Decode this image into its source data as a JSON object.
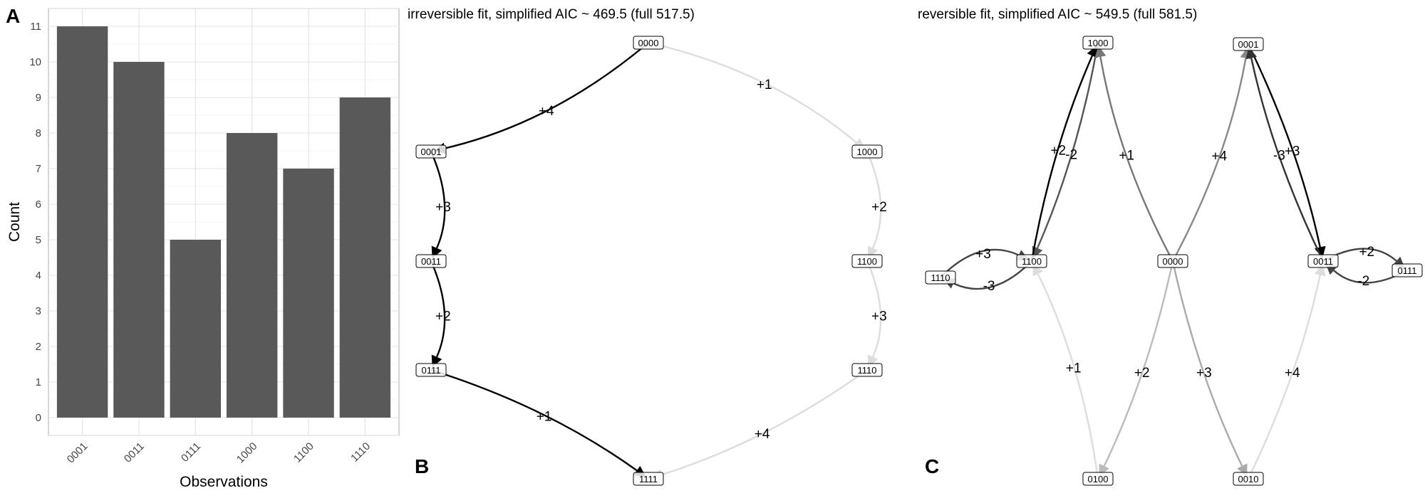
{
  "panels": {
    "a_letter": "A",
    "b_letter": "B",
    "c_letter": "C",
    "b_title": "irreversible fit, simplified AIC ~ 469.5 (full 517.5)",
    "c_title": "reversible fit, simplified AIC ~ 549.5 (full 581.5)"
  },
  "chart_data": [
    {
      "type": "bar",
      "categories": [
        "0001",
        "0011",
        "0111",
        "1000",
        "1100",
        "1110"
      ],
      "values": [
        11,
        10,
        5,
        8,
        7,
        9
      ],
      "xlabel": "Observations",
      "ylabel": "Count",
      "ylim": [
        -0.5,
        11.5
      ],
      "yticks": [
        0,
        1,
        2,
        3,
        4,
        5,
        6,
        7,
        8,
        9,
        10,
        11
      ],
      "grid": true,
      "bar_color": "#595959"
    },
    {
      "type": "diagram",
      "title": "irreversible fit, simplified AIC ~ 469.5 (full 517.5)",
      "nodes": [
        "0000",
        "0001",
        "0011",
        "0111",
        "1111",
        "1000",
        "1100",
        "1110"
      ],
      "edges": [
        {
          "from": "0000",
          "to": "0001",
          "label": "+4",
          "color": "#000000"
        },
        {
          "from": "0001",
          "to": "0011",
          "label": "+3",
          "color": "#000000"
        },
        {
          "from": "0011",
          "to": "0111",
          "label": "+2",
          "color": "#000000"
        },
        {
          "from": "0111",
          "to": "1111",
          "label": "+1",
          "color": "#000000"
        },
        {
          "from": "0000",
          "to": "1000",
          "label": "+1",
          "color": "#dddddd"
        },
        {
          "from": "1000",
          "to": "1100",
          "label": "+2",
          "color": "#dddddd"
        },
        {
          "from": "1100",
          "to": "1110",
          "label": "+3",
          "color": "#dddddd"
        },
        {
          "from": "1110",
          "to": "1111",
          "label": "+4",
          "color": "#dddddd"
        }
      ]
    },
    {
      "type": "diagram",
      "title": "reversible fit, simplified AIC ~ 549.5 (full 581.5)",
      "nodes": [
        "1000",
        "0001",
        "1110",
        "1100",
        "0000",
        "0011",
        "0111",
        "0100",
        "0010"
      ],
      "edges": [
        {
          "from": "1000",
          "to": "1100",
          "label": "-2",
          "color": "#555555"
        },
        {
          "from": "1100",
          "to": "1000",
          "label": "+2",
          "color": "#000000"
        },
        {
          "from": "0000",
          "to": "1000",
          "label": "+1",
          "color": "#777777"
        },
        {
          "from": "0000",
          "to": "0001",
          "label": "+4",
          "color": "#888888"
        },
        {
          "from": "0001",
          "to": "0011",
          "label": "+3",
          "color": "#000000"
        },
        {
          "from": "0011",
          "to": "0001",
          "label": "-3",
          "color": "#333333"
        },
        {
          "from": "1100",
          "to": "1110",
          "label": "-3",
          "color": "#444444"
        },
        {
          "from": "1110",
          "to": "1100",
          "label": "+3",
          "color": "#444444"
        },
        {
          "from": "0011",
          "to": "0111",
          "label": "+2",
          "color": "#444444"
        },
        {
          "from": "0111",
          "to": "0011",
          "label": "-2",
          "color": "#444444"
        },
        {
          "from": "0100",
          "to": "1100",
          "label": "+1",
          "color": "#dddddd"
        },
        {
          "from": "0000",
          "to": "0100",
          "label": "+2",
          "color": "#bbbbbb"
        },
        {
          "from": "0000",
          "to": "0010",
          "label": "+3",
          "color": "#aaaaaa"
        },
        {
          "from": "0010",
          "to": "0011",
          "label": "+4",
          "color": "#dddddd"
        }
      ]
    }
  ]
}
